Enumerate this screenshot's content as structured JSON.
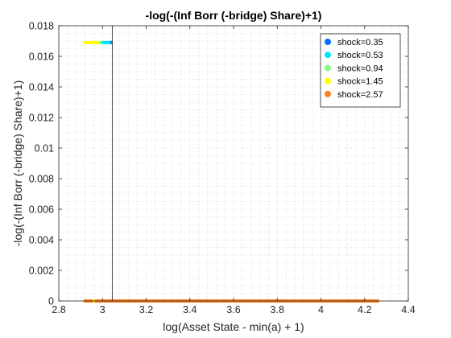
{
  "chart_data": {
    "type": "scatter",
    "title": "-log(-(Inf Borr (-bridge) Share)+1)",
    "xlabel": "log(Asset State - min(a) + 1)",
    "ylabel": "-log(-(Inf Borr (-bridge) Share)+1)",
    "xlim": [
      2.8,
      4.4
    ],
    "ylim": [
      0,
      0.018
    ],
    "xticks": [
      2.8,
      3,
      3.2,
      3.4,
      3.6,
      3.8,
      4,
      4.2,
      4.4
    ],
    "xtick_labels": [
      "2.8",
      "3",
      "3.2",
      "3.4",
      "3.6",
      "3.8",
      "4",
      "4.2",
      "4.4"
    ],
    "yticks": [
      0,
      0.002,
      0.004,
      0.006,
      0.008,
      0.01,
      0.012,
      0.014,
      0.016,
      0.018
    ],
    "ytick_labels": [
      "0",
      "0.002",
      "0.004",
      "0.006",
      "0.008",
      "0.01",
      "0.012",
      "0.014",
      "0.016",
      "0.018"
    ],
    "grid": "minor-dotted",
    "legend_position": "top-right",
    "vertical_line_x": 3.045,
    "series": [
      {
        "name": "shock=0.35",
        "color": "#0072ff",
        "segments": [
          {
            "x": [
              3.03,
              3.04
            ],
            "y": 0.0169
          },
          {
            "x": [
              2.92,
              4.26
            ],
            "y": 0
          }
        ]
      },
      {
        "name": "shock=0.53",
        "color": "#00e5ff",
        "segments": [
          {
            "x": [
              2.99,
              3.03
            ],
            "y": 0.0169
          },
          {
            "x": [
              2.92,
              4.26
            ],
            "y": 0
          }
        ]
      },
      {
        "name": "shock=0.94",
        "color": "#80ff80",
        "segments": [
          {
            "x": [
              2.96,
              2.99
            ],
            "y": 0.0169
          },
          {
            "x": [
              2.92,
              4.26
            ],
            "y": 0
          }
        ]
      },
      {
        "name": "shock=1.45",
        "color": "#ffff00",
        "segments": [
          {
            "x": [
              2.92,
              2.98
            ],
            "y": 0.0169
          },
          {
            "x": [
              2.92,
              4.26
            ],
            "y": 0
          }
        ]
      },
      {
        "name": "shock=2.57",
        "color": "#ff7f1a",
        "segments": [
          {
            "x": [
              2.92,
              2.95
            ],
            "y": 0
          },
          {
            "x": [
              2.97,
              4.26
            ],
            "y": 0
          }
        ]
      }
    ]
  }
}
